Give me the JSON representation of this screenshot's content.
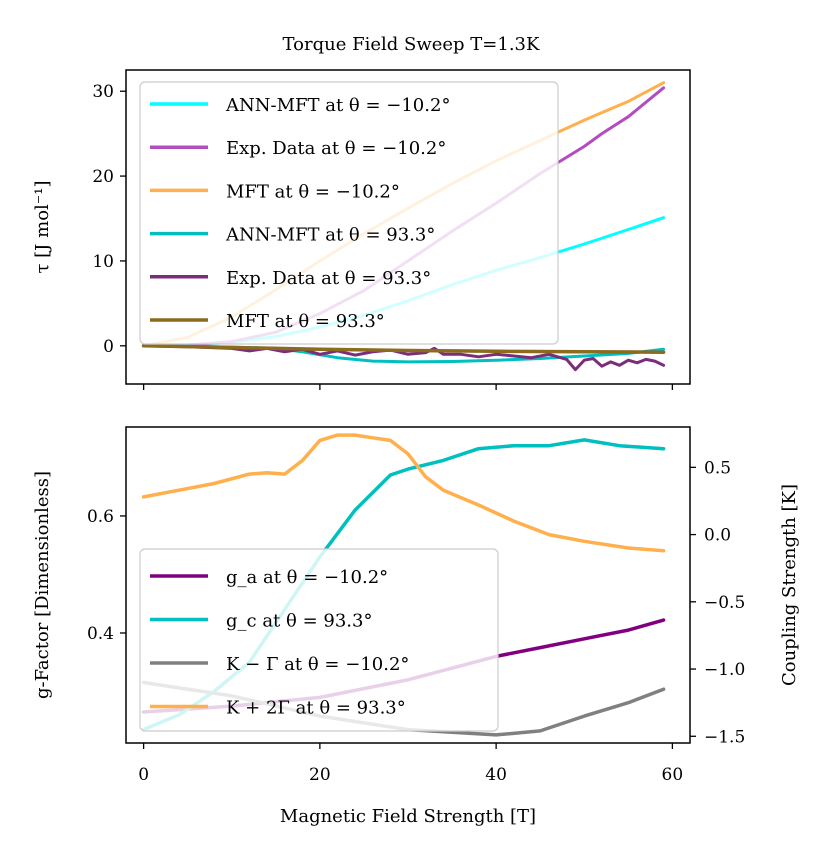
{
  "chart_data": [
    {
      "type": "line",
      "title": "Torque Field Sweep T=1.3K",
      "xlabel": "",
      "ylabel": "τ [J mol⁻¹]",
      "xlim": [
        -2,
        62
      ],
      "ylim": [
        -4.5,
        32.5
      ],
      "yticks": [
        0,
        10,
        20,
        30
      ],
      "legend_position": "upper-left",
      "series": [
        {
          "name": "ANN-MFT at θ = −10.2°",
          "color": "#00ffff",
          "width": 3,
          "x": [
            0,
            5,
            10,
            15,
            20,
            25,
            30,
            35,
            40,
            45,
            50,
            55,
            59
          ],
          "y": [
            0,
            0.1,
            0.4,
            1.1,
            2.2,
            3.6,
            5.3,
            7.2,
            8.9,
            10.4,
            12.0,
            13.7,
            15.1
          ]
        },
        {
          "name": "Exp. Data at θ = −10.2°",
          "color": "#b34dbf",
          "width": 3,
          "x": [
            0,
            5,
            10,
            15,
            20,
            25,
            30,
            35,
            40,
            45,
            50,
            52,
            55,
            59
          ],
          "y": [
            0,
            0.1,
            0.5,
            1.6,
            3.8,
            6.5,
            10.0,
            13.5,
            16.8,
            20.3,
            23.5,
            25.0,
            27.0,
            30.4
          ]
        },
        {
          "name": "MFT at θ = −10.2°",
          "color": "#ffb04c",
          "width": 3,
          "x": [
            0,
            5,
            10,
            15,
            20,
            25,
            30,
            35,
            40,
            45,
            50,
            55,
            59
          ],
          "y": [
            0,
            1.0,
            3.4,
            6.6,
            10.0,
            13.2,
            16.2,
            19.1,
            21.8,
            24.2,
            26.6,
            28.8,
            31.0
          ]
        },
        {
          "name": "ANN-MFT at θ = 93.3°",
          "color": "#00bfbf",
          "width": 3,
          "x": [
            0,
            5,
            10,
            15,
            18,
            22,
            26,
            30,
            35,
            40,
            45,
            50,
            55,
            59
          ],
          "y": [
            0,
            -0.05,
            -0.15,
            -0.3,
            -0.7,
            -1.4,
            -1.8,
            -1.9,
            -1.85,
            -1.7,
            -1.5,
            -1.2,
            -0.9,
            -0.4
          ]
        },
        {
          "name": "Exp. Data at θ = 93.3°",
          "color": "#7a2d7a",
          "width": 3,
          "x": [
            0,
            5,
            10,
            12,
            14,
            16,
            18,
            20,
            22,
            24,
            26,
            28,
            30,
            32,
            33,
            34,
            36,
            38,
            40,
            42,
            44,
            46,
            48,
            49,
            50,
            51,
            52,
            53,
            54,
            55,
            56,
            57,
            58,
            59
          ],
          "y": [
            0,
            -0.1,
            -0.3,
            -0.6,
            -0.3,
            -0.7,
            -0.4,
            -1.0,
            -0.6,
            -1.1,
            -0.7,
            -0.5,
            -1.0,
            -0.8,
            -0.3,
            -1.0,
            -1.0,
            -1.3,
            -1.0,
            -1.2,
            -1.4,
            -1.0,
            -1.6,
            -2.8,
            -1.7,
            -1.5,
            -2.4,
            -1.9,
            -2.3,
            -1.7,
            -2.0,
            -1.6,
            -1.8,
            -2.3
          ]
        },
        {
          "name": "MFT at θ = 93.3°",
          "color": "#8c6a1e",
          "width": 3.5,
          "x": [
            0,
            10,
            20,
            30,
            40,
            50,
            59
          ],
          "y": [
            0,
            -0.2,
            -0.4,
            -0.55,
            -0.65,
            -0.7,
            -0.75
          ]
        }
      ]
    },
    {
      "type": "line",
      "title": "",
      "xlabel": "Magnetic Field Strength [T]",
      "ylabel": "g-Factor [Dimensionless]",
      "ylabel_right": "Coupling Strength [K]",
      "xlim": [
        -2,
        62
      ],
      "xticks": [
        0,
        20,
        40,
        60
      ],
      "ylim": [
        0.212,
        0.752
      ],
      "yticks": [
        0.4,
        0.6
      ],
      "ylim_right": [
        -1.55,
        0.8
      ],
      "yticks_right": [
        -1.5,
        -1.0,
        -0.5,
        0.0,
        0.5
      ],
      "ytick_labels_right": [
        "−1.5",
        "−1.0",
        "−0.5",
        "0.0",
        "0.5"
      ],
      "legend_position": "lower-left",
      "series": [
        {
          "name": "g_a at θ = −10.2°",
          "axis": "left",
          "color": "#800080",
          "width": 3.5,
          "x": [
            0,
            10,
            20,
            30,
            40,
            45,
            50,
            55,
            59
          ],
          "y": [
            0.265,
            0.275,
            0.29,
            0.32,
            0.36,
            0.375,
            0.39,
            0.405,
            0.422
          ]
        },
        {
          "name": "g_c at θ = 93.3°",
          "axis": "left",
          "color": "#00bfbf",
          "width": 3.5,
          "x": [
            0,
            4,
            8,
            12,
            16,
            20,
            24,
            28,
            30,
            34,
            38,
            42,
            46,
            50,
            54,
            59
          ],
          "y": [
            0.235,
            0.26,
            0.3,
            0.35,
            0.44,
            0.53,
            0.61,
            0.67,
            0.68,
            0.695,
            0.715,
            0.72,
            0.72,
            0.73,
            0.72,
            0.715
          ]
        },
        {
          "name": "K − Γ at θ = −10.2°",
          "axis": "right",
          "color": "#808080",
          "width": 3.5,
          "x": [
            0,
            10,
            20,
            30,
            40,
            45,
            50,
            55,
            59
          ],
          "y": [
            -1.1,
            -1.2,
            -1.35,
            -1.45,
            -1.49,
            -1.46,
            -1.35,
            -1.25,
            -1.15
          ]
        },
        {
          "name": "K + 2Γ at θ = 93.3°",
          "axis": "right",
          "color": "#ffb04c",
          "width": 3.5,
          "x": [
            0,
            4,
            8,
            12,
            14,
            16,
            18,
            20,
            22,
            24,
            26,
            28,
            30,
            32,
            34,
            38,
            42,
            46,
            50,
            55,
            59
          ],
          "y": [
            0.28,
            0.33,
            0.38,
            0.45,
            0.46,
            0.45,
            0.55,
            0.7,
            0.74,
            0.74,
            0.72,
            0.7,
            0.6,
            0.43,
            0.33,
            0.22,
            0.1,
            0.0,
            -0.05,
            -0.1,
            -0.12
          ]
        }
      ]
    }
  ]
}
